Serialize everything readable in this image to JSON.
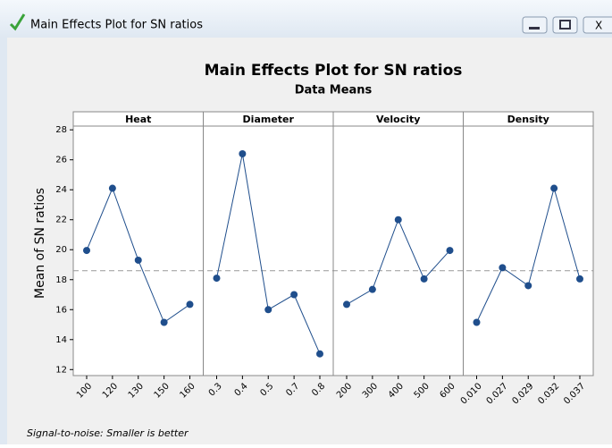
{
  "window_title": "Main Effects Plot for SN ratios",
  "chart_data": {
    "type": "line",
    "title": "Main Effects Plot for SN ratios",
    "subtitle": "Data Means",
    "ylabel": "Mean of SN ratios",
    "color": "#1f4e8c",
    "panels": [
      {
        "name": "Heat",
        "categories": [
          "100",
          "120",
          "130",
          "150",
          "160"
        ],
        "values": [
          19.95,
          24.1,
          19.3,
          15.15,
          16.35
        ]
      },
      {
        "name": "Diameter",
        "categories": [
          "0.3",
          "0.4",
          "0.5",
          "0.7",
          "0.8"
        ],
        "values": [
          18.1,
          26.4,
          16.0,
          17.0,
          13.05
        ]
      },
      {
        "name": "Velocity",
        "categories": [
          "200",
          "300",
          "400",
          "500",
          "600"
        ],
        "values": [
          16.35,
          17.35,
          22.0,
          18.05,
          19.95
        ]
      },
      {
        "name": "Density",
        "categories": [
          "0.010",
          "0.027",
          "0.029",
          "0.032",
          "0.037"
        ],
        "values": [
          15.15,
          18.8,
          17.6,
          24.1,
          18.05
        ]
      }
    ],
    "reference_line": 18.6,
    "ylim": [
      11.6,
      28.25
    ],
    "yticks": [
      12,
      14,
      16,
      18,
      20,
      22,
      24,
      26,
      28
    ],
    "footnote": "Signal-to-noise: Smaller is better"
  }
}
